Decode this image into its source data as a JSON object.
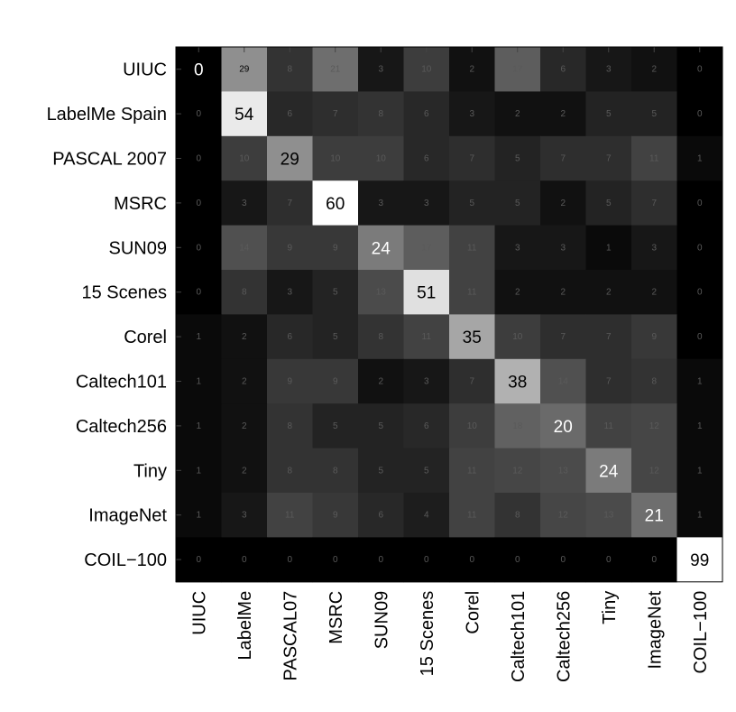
{
  "chart_data": {
    "type": "heatmap",
    "title": "",
    "xlabel": "",
    "ylabel": "",
    "row_labels": [
      "UIUC",
      "LabelMe Spain",
      "PASCAL 2007",
      "MSRC",
      "SUN09",
      "15 Scenes",
      "Corel",
      "Caltech101",
      "Caltech256",
      "Tiny",
      "ImageNet",
      "COIL−100"
    ],
    "col_labels": [
      "UIUC",
      "LabelMe",
      "PASCAL07",
      "MSRC",
      "SUN09",
      "15 Scenes",
      "Corel",
      "Caltech101",
      "Caltech256",
      "Tiny",
      "ImageNet",
      "COIL−100"
    ],
    "values": [
      [
        0,
        29,
        8,
        21,
        3,
        10,
        2,
        17,
        6,
        3,
        2,
        0
      ],
      [
        0,
        54,
        6,
        7,
        8,
        6,
        3,
        2,
        2,
        5,
        5,
        0
      ],
      [
        0,
        10,
        29,
        10,
        10,
        6,
        7,
        5,
        7,
        7,
        11,
        1
      ],
      [
        0,
        3,
        7,
        60,
        3,
        3,
        5,
        5,
        2,
        5,
        7,
        0
      ],
      [
        0,
        14,
        9,
        9,
        24,
        17,
        11,
        3,
        3,
        1,
        3,
        0
      ],
      [
        0,
        8,
        3,
        5,
        13,
        51,
        11,
        2,
        2,
        2,
        2,
        0
      ],
      [
        1,
        2,
        6,
        5,
        8,
        11,
        35,
        10,
        7,
        7,
        9,
        0
      ],
      [
        1,
        2,
        9,
        9,
        2,
        3,
        7,
        38,
        14,
        7,
        8,
        1
      ],
      [
        1,
        2,
        8,
        5,
        5,
        6,
        10,
        18,
        20,
        11,
        12,
        1
      ],
      [
        1,
        2,
        8,
        8,
        5,
        5,
        11,
        12,
        13,
        24,
        12,
        1
      ],
      [
        1,
        3,
        11,
        9,
        6,
        4,
        11,
        8,
        12,
        13,
        21,
        1
      ],
      [
        0,
        0,
        0,
        0,
        0,
        0,
        0,
        0,
        0,
        0,
        0,
        99
      ]
    ],
    "color_scale": {
      "low": "#000000",
      "high": "#ffffff",
      "min": 0,
      "max": 60
    },
    "diagonal_labels_emphasized": true
  }
}
